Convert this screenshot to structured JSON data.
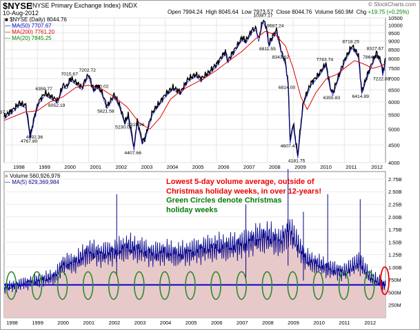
{
  "header": {
    "symbol": "$NYSE",
    "exchange_name": "(NYSE Primary Exchange Index) INDX",
    "date": "10-Aug-2012",
    "open_label": "Open",
    "open_value": "7994.24",
    "high_label": "High",
    "high_value": "8045.64",
    "low_label": "Low",
    "low_value": "7973.57",
    "close_label": "Close",
    "close_value": "8044.76",
    "volume_label": "Volume",
    "volume_value": "560.9M",
    "chg_label": "Chg",
    "chg_value": "+19.75 (+0.25%)",
    "copyright": "© StockCharts.com"
  },
  "colors": {
    "price": "#000000",
    "ma50": "#0000cc",
    "ma200": "#dd0000",
    "ma20": "#008000",
    "volume_line": "#00008b",
    "volume_fill": "#e8c9c9",
    "annotation_red": "#ee0000",
    "annotation_green": "#0a7a0a"
  },
  "chart_data": [
    {
      "type": "line",
      "title": "$NYSE (Daily) 8044.76",
      "ylim": [
        4000,
        10500
      ],
      "y_scale": "log",
      "ytick_labels": [
        "10500",
        "10000",
        "9500",
        "9000",
        "8500",
        "8000",
        "7500",
        "7000",
        "6500",
        "6000",
        "5500",
        "5000",
        "4500",
        "4000"
      ],
      "xtick_labels": [
        "1998",
        "1999",
        "2000",
        "2001",
        "2002",
        "2003",
        "2004",
        "2005",
        "2006",
        "2007",
        "2008",
        "2009",
        "2010",
        "2011",
        "2012"
      ],
      "legend": [
        {
          "name": "$NYSE (Daily) 8044.76",
          "color": "#000000"
        },
        {
          "name": "MA(50) 7707.67",
          "color": "#0000cc"
        },
        {
          "name": "MA(200) 7761.20",
          "color": "#dd0000"
        },
        {
          "name": "MA(20) 7845.25",
          "color": "#008000"
        }
      ],
      "price_points": [
        [
          1997.7,
          5437.22
        ],
        [
          1998.05,
          5700
        ],
        [
          1998.3,
          5950
        ],
        [
          1998.55,
          5850
        ],
        [
          1998.72,
          4767.8
        ],
        [
          1998.9,
          5500
        ],
        [
          1999.05,
          6000
        ],
        [
          1999.3,
          6359.77
        ],
        [
          1999.55,
          6200
        ],
        [
          1999.8,
          6052.19
        ],
        [
          2000.0,
          6700
        ],
        [
          2000.15,
          6650
        ],
        [
          2000.3,
          7015.67
        ],
        [
          2000.55,
          6800
        ],
        [
          2000.75,
          6600
        ],
        [
          2000.85,
          6900
        ],
        [
          2001.0,
          7202.72
        ],
        [
          2001.2,
          6500
        ],
        [
          2001.35,
          6700
        ],
        [
          2001.5,
          6460.02
        ],
        [
          2001.72,
          5821.58
        ],
        [
          2001.9,
          6100
        ],
        [
          2002.0,
          6300
        ],
        [
          2002.2,
          5900
        ],
        [
          2002.42,
          5230.08
        ],
        [
          2002.55,
          5500
        ],
        [
          2002.78,
          4407.66
        ],
        [
          2002.9,
          5319.96
        ],
        [
          2003.1,
          4600
        ],
        [
          2003.2,
          4700
        ],
        [
          2003.5,
          5600
        ],
        [
          2003.8,
          6000
        ],
        [
          2004.0,
          6300
        ],
        [
          2004.3,
          6600
        ],
        [
          2004.6,
          6400
        ],
        [
          2004.9,
          7000
        ],
        [
          2005.2,
          7200
        ],
        [
          2005.4,
          7000
        ],
        [
          2005.7,
          7300
        ],
        [
          2006.0,
          7700
        ],
        [
          2006.35,
          8400
        ],
        [
          2006.45,
          7900
        ],
        [
          2006.8,
          8700
        ],
        [
          2007.0,
          9200
        ],
        [
          2007.15,
          9000
        ],
        [
          2007.4,
          9700
        ],
        [
          2007.55,
          9800
        ],
        [
          2007.65,
          9100
        ],
        [
          2007.82,
          10387.17
        ],
        [
          2007.95,
          9900
        ],
        [
          2008.05,
          8811.55
        ],
        [
          2008.2,
          9300
        ],
        [
          2008.35,
          9687.24
        ],
        [
          2008.55,
          8343.62
        ],
        [
          2008.7,
          7800
        ],
        [
          2008.8,
          6814.0
        ],
        [
          2008.88,
          4607.47
        ],
        [
          2009.0,
          5200
        ],
        [
          2009.18,
          4181.75
        ],
        [
          2009.4,
          6000
        ],
        [
          2009.7,
          6800
        ],
        [
          2010.0,
          7200
        ],
        [
          2010.28,
          7743.74
        ],
        [
          2010.45,
          6600
        ],
        [
          2010.55,
          6355.83
        ],
        [
          2010.8,
          7200
        ],
        [
          2011.0,
          7900
        ],
        [
          2011.3,
          8718.25
        ],
        [
          2011.55,
          8200
        ],
        [
          2011.68,
          6414.89
        ],
        [
          2011.85,
          7000
        ],
        [
          2012.0,
          7500
        ],
        [
          2012.25,
          8327.67
        ],
        [
          2012.45,
          7800
        ],
        [
          2012.5,
          7222.88
        ],
        [
          2012.61,
          8044.76
        ]
      ],
      "ma200_points": [
        [
          1997.7,
          5300
        ],
        [
          1998.5,
          5600
        ],
        [
          1999.0,
          5650
        ],
        [
          1999.5,
          6000
        ],
        [
          2000.0,
          6200
        ],
        [
          2000.5,
          6600
        ],
        [
          2001.0,
          6700
        ],
        [
          2001.5,
          6550
        ],
        [
          2002.0,
          6200
        ],
        [
          2002.5,
          5800
        ],
        [
          2003.0,
          5200
        ],
        [
          2003.4,
          5000
        ],
        [
          2003.8,
          5400
        ],
        [
          2004.2,
          6100
        ],
        [
          2004.6,
          6450
        ],
        [
          2005.0,
          6700
        ],
        [
          2005.5,
          7000
        ],
        [
          2006.0,
          7400
        ],
        [
          2006.5,
          7900
        ],
        [
          2007.0,
          8400
        ],
        [
          2007.5,
          9100
        ],
        [
          2007.9,
          9600
        ],
        [
          2008.3,
          9400
        ],
        [
          2008.7,
          8700
        ],
        [
          2009.0,
          7500
        ],
        [
          2009.3,
          6200
        ],
        [
          2009.55,
          5700
        ],
        [
          2009.9,
          6400
        ],
        [
          2010.3,
          7000
        ],
        [
          2010.7,
          7200
        ],
        [
          2011.0,
          7500
        ],
        [
          2011.4,
          7900
        ],
        [
          2011.8,
          7700
        ],
        [
          2012.1,
          7500
        ],
        [
          2012.4,
          7600
        ],
        [
          2012.61,
          7761.2
        ]
      ],
      "annotations": [
        "5437.22",
        "4767.80",
        "6359.77",
        "4892.36",
        "6052.19",
        "7015.67",
        "7202.72",
        "6460.02",
        "5821.58",
        "5230.08",
        "5319.96",
        "4407.66",
        "10387.17",
        "9687.24",
        "8811.55",
        "8343.62",
        "6814.00",
        "4607.47",
        "4181.75",
        "7743.74",
        "6355.83",
        "8718.25",
        "7864.49",
        "6414.89",
        "8327.67",
        "7222.88"
      ]
    },
    {
      "type": "area",
      "title": "Volume 560,926,976",
      "ylim": [
        0,
        2900000000
      ],
      "ytick_labels": [
        "2.75B",
        "2.50B",
        "2.25B",
        "2.00B",
        "1.75B",
        "1.50B",
        "1.25B",
        "1.00B",
        "750M",
        "500M",
        "250M"
      ],
      "xtick_labels": [
        "1998",
        "1999",
        "2000",
        "2001",
        "2002",
        "2003",
        "2004",
        "2005",
        "2006",
        "2007",
        "2008",
        "2009",
        "2010",
        "2011",
        "2012"
      ],
      "legend": [
        {
          "name": "Volume 560,926,976",
          "color": "#e8c9c9"
        },
        {
          "name": "MA(5) 629,369,984",
          "color": "#00008b"
        }
      ],
      "reference_line_value": 650000000,
      "volume_ma5_points": [
        [
          1997.7,
          580000000
        ],
        [
          1998.2,
          640000000
        ],
        [
          1998.7,
          700000000
        ],
        [
          1999.2,
          750000000
        ],
        [
          1999.7,
          820000000
        ],
        [
          2000.0,
          1050000000
        ],
        [
          2000.5,
          1100000000
        ],
        [
          2001.0,
          1300000000
        ],
        [
          2001.5,
          1250000000
        ],
        [
          2002.0,
          1300000000
        ],
        [
          2002.5,
          1400000000
        ],
        [
          2003.0,
          1350000000
        ],
        [
          2003.5,
          1250000000
        ],
        [
          2004.0,
          1300000000
        ],
        [
          2004.5,
          1250000000
        ],
        [
          2005.0,
          1300000000
        ],
        [
          2005.5,
          1350000000
        ],
        [
          2006.0,
          1400000000
        ],
        [
          2006.5,
          1400000000
        ],
        [
          2007.0,
          1450000000
        ],
        [
          2007.5,
          1550000000
        ],
        [
          2008.0,
          1600000000
        ],
        [
          2008.5,
          1500000000
        ],
        [
          2008.85,
          1750000000
        ],
        [
          2009.2,
          1400000000
        ],
        [
          2009.5,
          1150000000
        ],
        [
          2010.0,
          1050000000
        ],
        [
          2010.5,
          950000000
        ],
        [
          2011.0,
          900000000
        ],
        [
          2011.6,
          1100000000
        ],
        [
          2012.0,
          800000000
        ],
        [
          2012.4,
          700000000
        ],
        [
          2012.61,
          629369984
        ]
      ],
      "spike_points": [
        [
          2002.1,
          2450000000
        ],
        [
          2007.15,
          2250000000
        ],
        [
          2008.8,
          2950000000
        ],
        [
          2009.4,
          2100000000
        ],
        [
          2010.35,
          2450000000
        ],
        [
          2011.62,
          2350000000
        ]
      ],
      "christmas_circle_years": [
        1997.98,
        1998.98,
        1999.98,
        2000.98,
        2001.98,
        2002.98,
        2003.98,
        2004.98,
        2005.98,
        2006.98,
        2007.98,
        2008.98,
        2009.98,
        2010.98,
        2011.98
      ],
      "current_marker_year": 2012.61,
      "annotation_red": "Lowest 5-day volume average, outside of Christmas holiday weeks, in over 12-years!",
      "annotation_green": "Green Circles denote Christmas holiday weeks"
    }
  ]
}
